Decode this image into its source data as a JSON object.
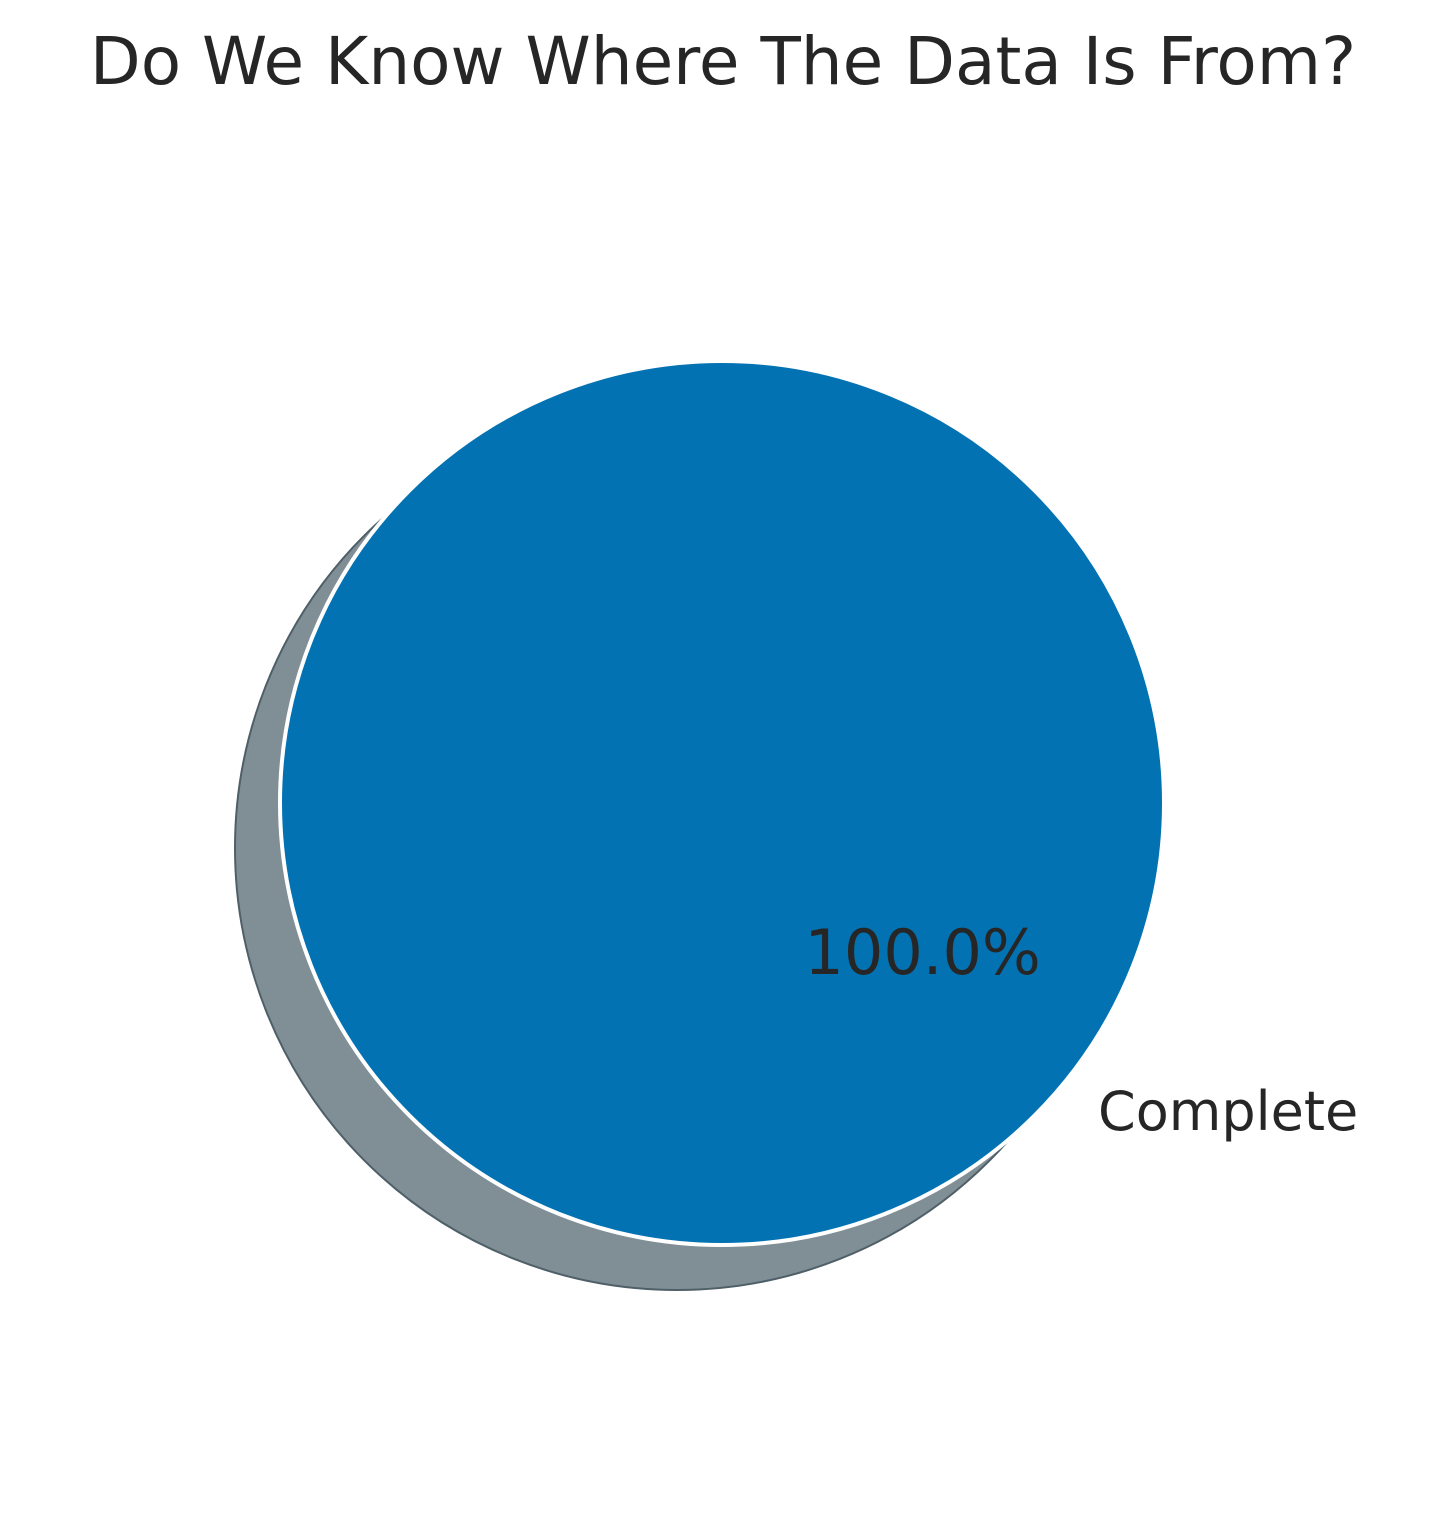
{
  "chart_data": {
    "type": "pie",
    "title": "Do We Know Where The Data Is From?",
    "slices": [
      {
        "label": "Complete",
        "value": 100.0,
        "percent_label": "100.0%",
        "color": "#0372b2"
      }
    ],
    "shadow": true,
    "shadow_color": "#808f96",
    "legend": "none"
  }
}
